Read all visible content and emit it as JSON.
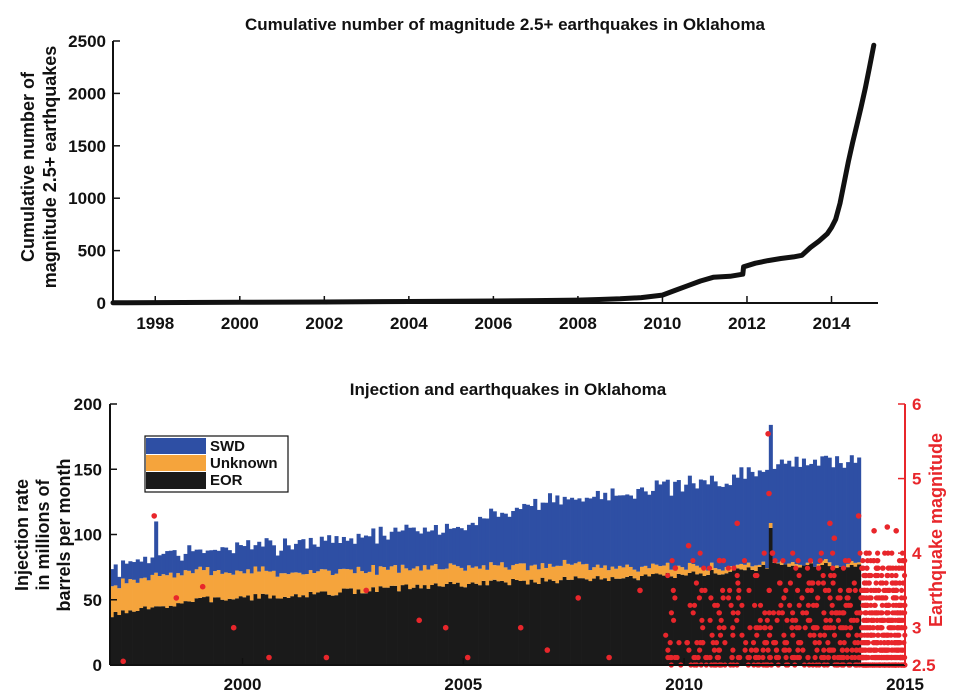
{
  "chart_data": [
    {
      "type": "line",
      "title": "Cumulative number of magnitude 2.5+ earthquakes in Oklahoma",
      "ylabel_lines": [
        "Cumulative number of",
        "magnitude 2.5+ earthquakes"
      ],
      "xlabel": "",
      "xlim": [
        1997.0,
        2015.1
      ],
      "ylim": [
        0,
        2500
      ],
      "xticks": [
        1998,
        2000,
        2002,
        2004,
        2006,
        2008,
        2010,
        2012,
        2014
      ],
      "yticks": [
        0,
        500,
        1000,
        1500,
        2000,
        2500
      ],
      "series": [
        {
          "color": "#111111",
          "x": [
            1997.0,
            1998.0,
            2000.0,
            2002.0,
            2004.0,
            2006.0,
            2007.0,
            2008.0,
            2008.5,
            2009.0,
            2009.5,
            2010.0,
            2010.3,
            2010.6,
            2010.9,
            2011.2,
            2011.6,
            2011.9,
            2011.92,
            2012.2,
            2012.5,
            2012.8,
            2013.1,
            2013.3,
            2013.5,
            2013.7,
            2013.9,
            2014.0,
            2014.1,
            2014.2,
            2014.3,
            2014.4,
            2014.5,
            2014.6,
            2014.7,
            2014.8,
            2014.9,
            2015.0
          ],
          "y": [
            2,
            4,
            7,
            10,
            14,
            19,
            23,
            28,
            33,
            40,
            52,
            75,
            120,
            165,
            210,
            245,
            255,
            275,
            345,
            380,
            405,
            425,
            440,
            455,
            530,
            590,
            660,
            720,
            800,
            950,
            1150,
            1350,
            1530,
            1700,
            1870,
            2050,
            2250,
            2460
          ]
        }
      ]
    },
    {
      "type": "bar",
      "title": "Injection and earthquakes in Oklahoma",
      "ylabel_lines": [
        "Injection rate",
        "in millions of",
        "barrels per month"
      ],
      "y2label": "Earthquake magnitude",
      "xlim": [
        1997.0,
        2015.0
      ],
      "ylim": [
        0,
        200
      ],
      "y2lim": [
        2.5,
        6
      ],
      "xticks": [
        2000,
        2005,
        2010,
        2015
      ],
      "yticks": [
        0,
        50,
        100,
        150,
        200
      ],
      "y2ticks": [
        2.5,
        3,
        4,
        5,
        6
      ],
      "y2ticklabels": [
        "2.5",
        "3",
        "4",
        "5",
        "6"
      ],
      "stack_order": [
        "EOR",
        "Unknown",
        "SWD"
      ],
      "legend": [
        {
          "name": "SWD",
          "color": "#2e4fa4"
        },
        {
          "name": "Unknown",
          "color": "#f5a43c"
        },
        {
          "name": "EOR",
          "color": "#1a1a1a"
        }
      ],
      "legend_position": "top-left",
      "monthly_start": 1997.0,
      "monthly_end": 2014.0,
      "eor_key_points": [
        [
          1997.0,
          38
        ],
        [
          1998.0,
          44
        ],
        [
          1999.0,
          50
        ],
        [
          2001.0,
          53
        ],
        [
          2003.0,
          58
        ],
        [
          2005.0,
          62
        ],
        [
          2007.0,
          65
        ],
        [
          2009.0,
          67
        ],
        [
          2010.5,
          70
        ],
        [
          2012.0,
          76
        ],
        [
          2014.0,
          76
        ]
      ],
      "unknown_key_points": [
        [
          1997.0,
          22
        ],
        [
          1998.0,
          24
        ],
        [
          1999.0,
          22
        ],
        [
          2001.0,
          18
        ],
        [
          2003.0,
          15
        ],
        [
          2005.0,
          13
        ],
        [
          2007.0,
          12
        ],
        [
          2009.0,
          8
        ],
        [
          2010.5,
          5
        ],
        [
          2011.2,
          3
        ],
        [
          2012.0,
          2
        ],
        [
          2014.0,
          1
        ]
      ],
      "swd_key_points": [
        [
          1997.0,
          12
        ],
        [
          1998.0,
          18
        ],
        [
          1999.0,
          15
        ],
        [
          2001.0,
          22
        ],
        [
          2003.0,
          27
        ],
        [
          2005.0,
          32
        ],
        [
          2006.0,
          43
        ],
        [
          2007.0,
          50
        ],
        [
          2008.0,
          53
        ],
        [
          2009.0,
          60
        ],
        [
          2010.0,
          62
        ],
        [
          2011.0,
          67
        ],
        [
          2012.0,
          76
        ],
        [
          2013.0,
          79
        ],
        [
          2014.0,
          82
        ]
      ],
      "notable_spikes": [
        {
          "x": 1998.0,
          "total": 110,
          "eor": 45
        },
        {
          "x": 2011.9,
          "total": 184,
          "eor": 105
        }
      ],
      "earthquake_points": [
        {
          "year": 1997.3,
          "magnitude": 2.55
        },
        {
          "year": 1998.0,
          "magnitude": 4.5
        },
        {
          "year": 1998.5,
          "magnitude": 3.4
        },
        {
          "year": 1999.1,
          "magnitude": 3.55
        },
        {
          "year": 1999.8,
          "magnitude": 3.0
        },
        {
          "year": 2000.6,
          "magnitude": 2.6
        },
        {
          "year": 2001.9,
          "magnitude": 2.6
        },
        {
          "year": 2002.8,
          "magnitude": 3.5
        },
        {
          "year": 2004.0,
          "magnitude": 3.1
        },
        {
          "year": 2004.6,
          "magnitude": 3.0
        },
        {
          "year": 2005.1,
          "magnitude": 2.6
        },
        {
          "year": 2006.3,
          "magnitude": 3.0
        },
        {
          "year": 2006.9,
          "magnitude": 2.7
        },
        {
          "year": 2007.6,
          "magnitude": 3.4
        },
        {
          "year": 2008.3,
          "magnitude": 2.6
        },
        {
          "year": 2009.0,
          "magnitude": 3.5
        },
        {
          "year": 2009.8,
          "magnitude": 3.8
        },
        {
          "year": 2010.1,
          "magnitude": 4.1
        },
        {
          "year": 2010.8,
          "magnitude": 3.9
        },
        {
          "year": 2011.2,
          "magnitude": 4.4
        },
        {
          "year": 2011.9,
          "magnitude": 5.6
        },
        {
          "year": 2011.92,
          "magnitude": 4.8
        },
        {
          "year": 2012.0,
          "magnitude": 4.0
        },
        {
          "year": 2013.3,
          "magnitude": 4.4
        },
        {
          "year": 2013.4,
          "magnitude": 4.2
        },
        {
          "year": 2013.95,
          "magnitude": 4.5
        },
        {
          "year": 2014.3,
          "magnitude": 4.3
        },
        {
          "year": 2014.6,
          "magnitude": 4.35
        },
        {
          "year": 2014.8,
          "magnitude": 4.3
        }
      ],
      "earthquake_swarm": {
        "start": 2009.5,
        "end": 2015.0,
        "min_magnitude": 2.5,
        "max_magnitude": 4.0,
        "densest_period": [
          2014.0,
          2015.0
        ]
      }
    }
  ]
}
